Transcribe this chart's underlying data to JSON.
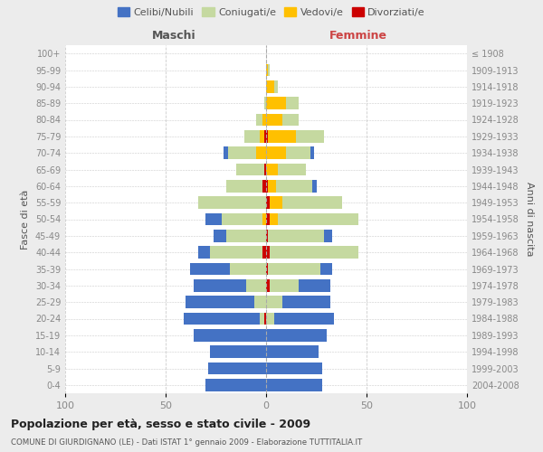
{
  "age_groups": [
    "0-4",
    "5-9",
    "10-14",
    "15-19",
    "20-24",
    "25-29",
    "30-34",
    "35-39",
    "40-44",
    "45-49",
    "50-54",
    "55-59",
    "60-64",
    "65-69",
    "70-74",
    "75-79",
    "80-84",
    "85-89",
    "90-94",
    "95-99",
    "100+"
  ],
  "birth_years": [
    "2004-2008",
    "1999-2003",
    "1994-1998",
    "1989-1993",
    "1984-1988",
    "1979-1983",
    "1974-1978",
    "1969-1973",
    "1964-1968",
    "1959-1963",
    "1954-1958",
    "1949-1953",
    "1944-1948",
    "1939-1943",
    "1934-1938",
    "1929-1933",
    "1924-1928",
    "1919-1923",
    "1914-1918",
    "1909-1913",
    "≤ 1908"
  ],
  "maschi": {
    "celibi": [
      30,
      29,
      28,
      36,
      38,
      34,
      26,
      20,
      6,
      6,
      8,
      0,
      0,
      0,
      2,
      0,
      0,
      0,
      0,
      0,
      0
    ],
    "coniugati": [
      0,
      0,
      0,
      0,
      2,
      6,
      10,
      18,
      26,
      20,
      20,
      34,
      18,
      14,
      14,
      8,
      3,
      1,
      0,
      0,
      0
    ],
    "vedovi": [
      0,
      0,
      0,
      0,
      0,
      0,
      0,
      0,
      0,
      0,
      2,
      0,
      0,
      0,
      5,
      2,
      2,
      0,
      0,
      0,
      0
    ],
    "divorziati": [
      0,
      0,
      0,
      0,
      1,
      0,
      0,
      0,
      2,
      0,
      0,
      0,
      2,
      1,
      0,
      1,
      0,
      0,
      0,
      0,
      0
    ]
  },
  "femmine": {
    "nubili": [
      28,
      28,
      26,
      30,
      30,
      24,
      16,
      6,
      0,
      4,
      0,
      0,
      2,
      0,
      2,
      0,
      0,
      0,
      0,
      0,
      0
    ],
    "coniugate": [
      0,
      0,
      0,
      0,
      4,
      8,
      14,
      26,
      44,
      28,
      40,
      30,
      18,
      14,
      12,
      14,
      8,
      6,
      2,
      1,
      0
    ],
    "vedove": [
      0,
      0,
      0,
      0,
      0,
      0,
      0,
      0,
      0,
      0,
      4,
      6,
      4,
      6,
      10,
      14,
      8,
      10,
      4,
      1,
      0
    ],
    "divorziate": [
      0,
      0,
      0,
      0,
      0,
      0,
      2,
      1,
      2,
      1,
      2,
      2,
      1,
      0,
      0,
      1,
      0,
      0,
      0,
      0,
      0
    ]
  },
  "colors": {
    "celibi": "#4472c4",
    "coniugati": "#c5d9a0",
    "vedovi": "#ffc000",
    "divorziati": "#cc0000"
  },
  "title": "Popolazione per età, sesso e stato civile - 2009",
  "subtitle": "COMUNE DI GIURDIGNANO (LE) - Dati ISTAT 1° gennaio 2009 - Elaborazione TUTTITALIA.IT",
  "ylabel_left": "Fasce di età",
  "ylabel_right": "Anni di nascita",
  "xlabel_maschi": "Maschi",
  "xlabel_femmine": "Femmine",
  "xlim": 100,
  "bg_color": "#ececec",
  "plot_bg": "#ffffff",
  "grid_color": "#cccccc",
  "tick_color": "#888888",
  "label_color": "#555555"
}
